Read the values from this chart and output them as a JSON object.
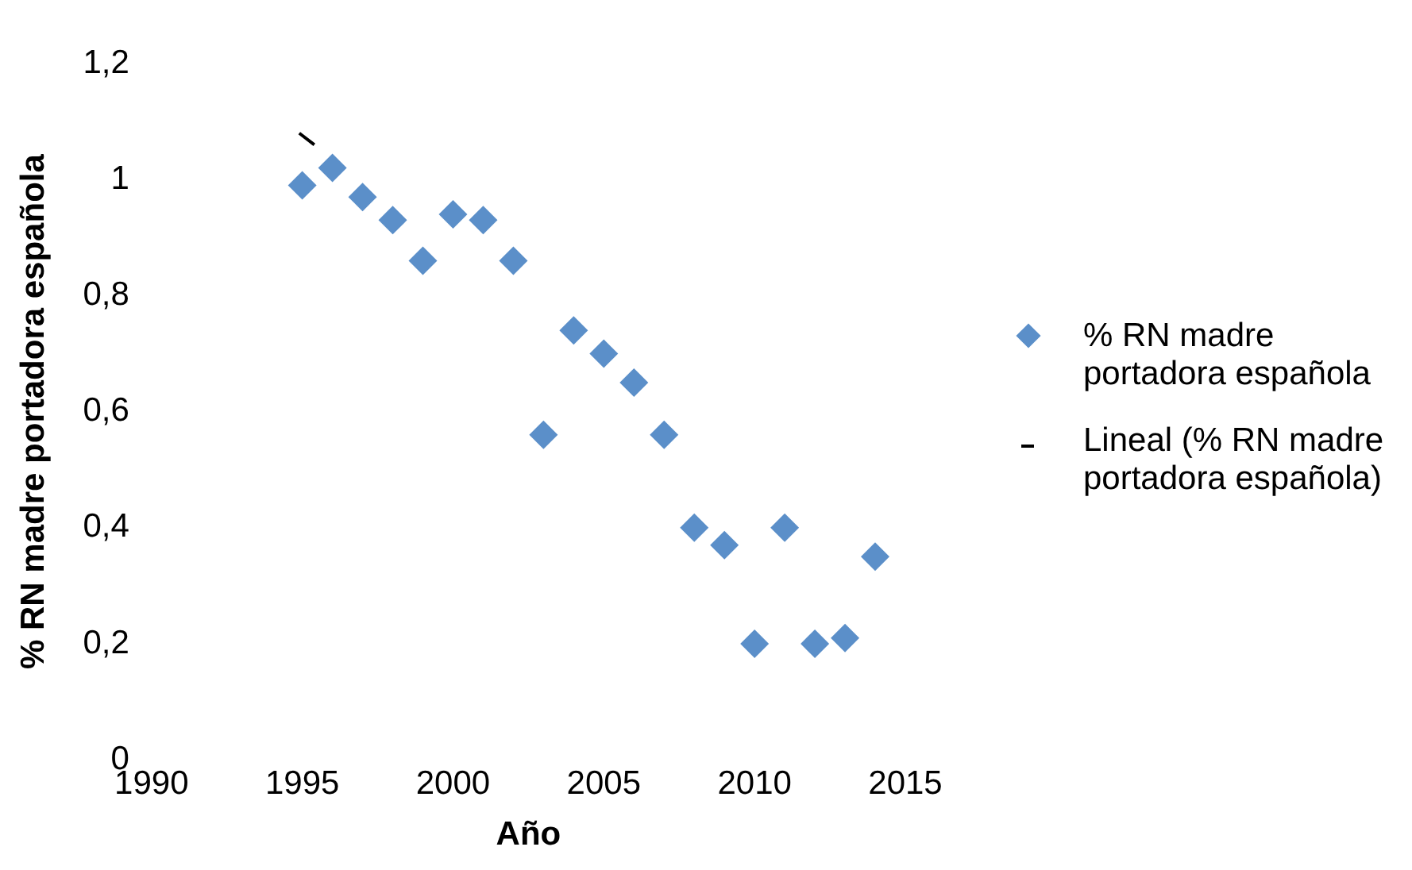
{
  "chart_data": {
    "type": "scatter",
    "xlabel": "Año",
    "ylabel": "% RN madre portadora española",
    "x": [
      1995,
      1996,
      1997,
      1998,
      1999,
      2000,
      2001,
      2002,
      2003,
      2004,
      2005,
      2006,
      2007,
      2008,
      2009,
      2010,
      2011,
      2012,
      2013,
      2014
    ],
    "series": [
      {
        "name": "% RN madre portadora española",
        "color": "#5b8fc9",
        "marker": "diamond",
        "values": [
          0.99,
          1.02,
          0.97,
          0.93,
          0.86,
          0.94,
          0.93,
          0.86,
          0.56,
          0.74,
          0.7,
          0.65,
          0.56,
          0.4,
          0.37,
          0.2,
          0.4,
          0.2,
          0.21,
          0.35
        ]
      },
      {
        "name": "Lineal (% RN madre portadora española)",
        "type": "line",
        "color": "#000000",
        "marker": "none",
        "x": [
          1994.9,
          1995.4
        ],
        "values": [
          1.08,
          1.06
        ]
      }
    ],
    "xlim": [
      1990,
      2015
    ],
    "xticks": [
      1990,
      1995,
      2000,
      2005,
      2010,
      2015
    ],
    "ylim": [
      0,
      1.2
    ],
    "yticks": [
      0,
      {
        "value": 0.2,
        "label": "0,2"
      },
      {
        "value": 0.4,
        "label": "0,4"
      },
      {
        "value": 0.6,
        "label": "0,6"
      },
      {
        "value": 0.8,
        "label": "0,8"
      },
      1,
      {
        "value": 1.2,
        "label": "1,2"
      }
    ],
    "grid": false,
    "legend": "right"
  }
}
